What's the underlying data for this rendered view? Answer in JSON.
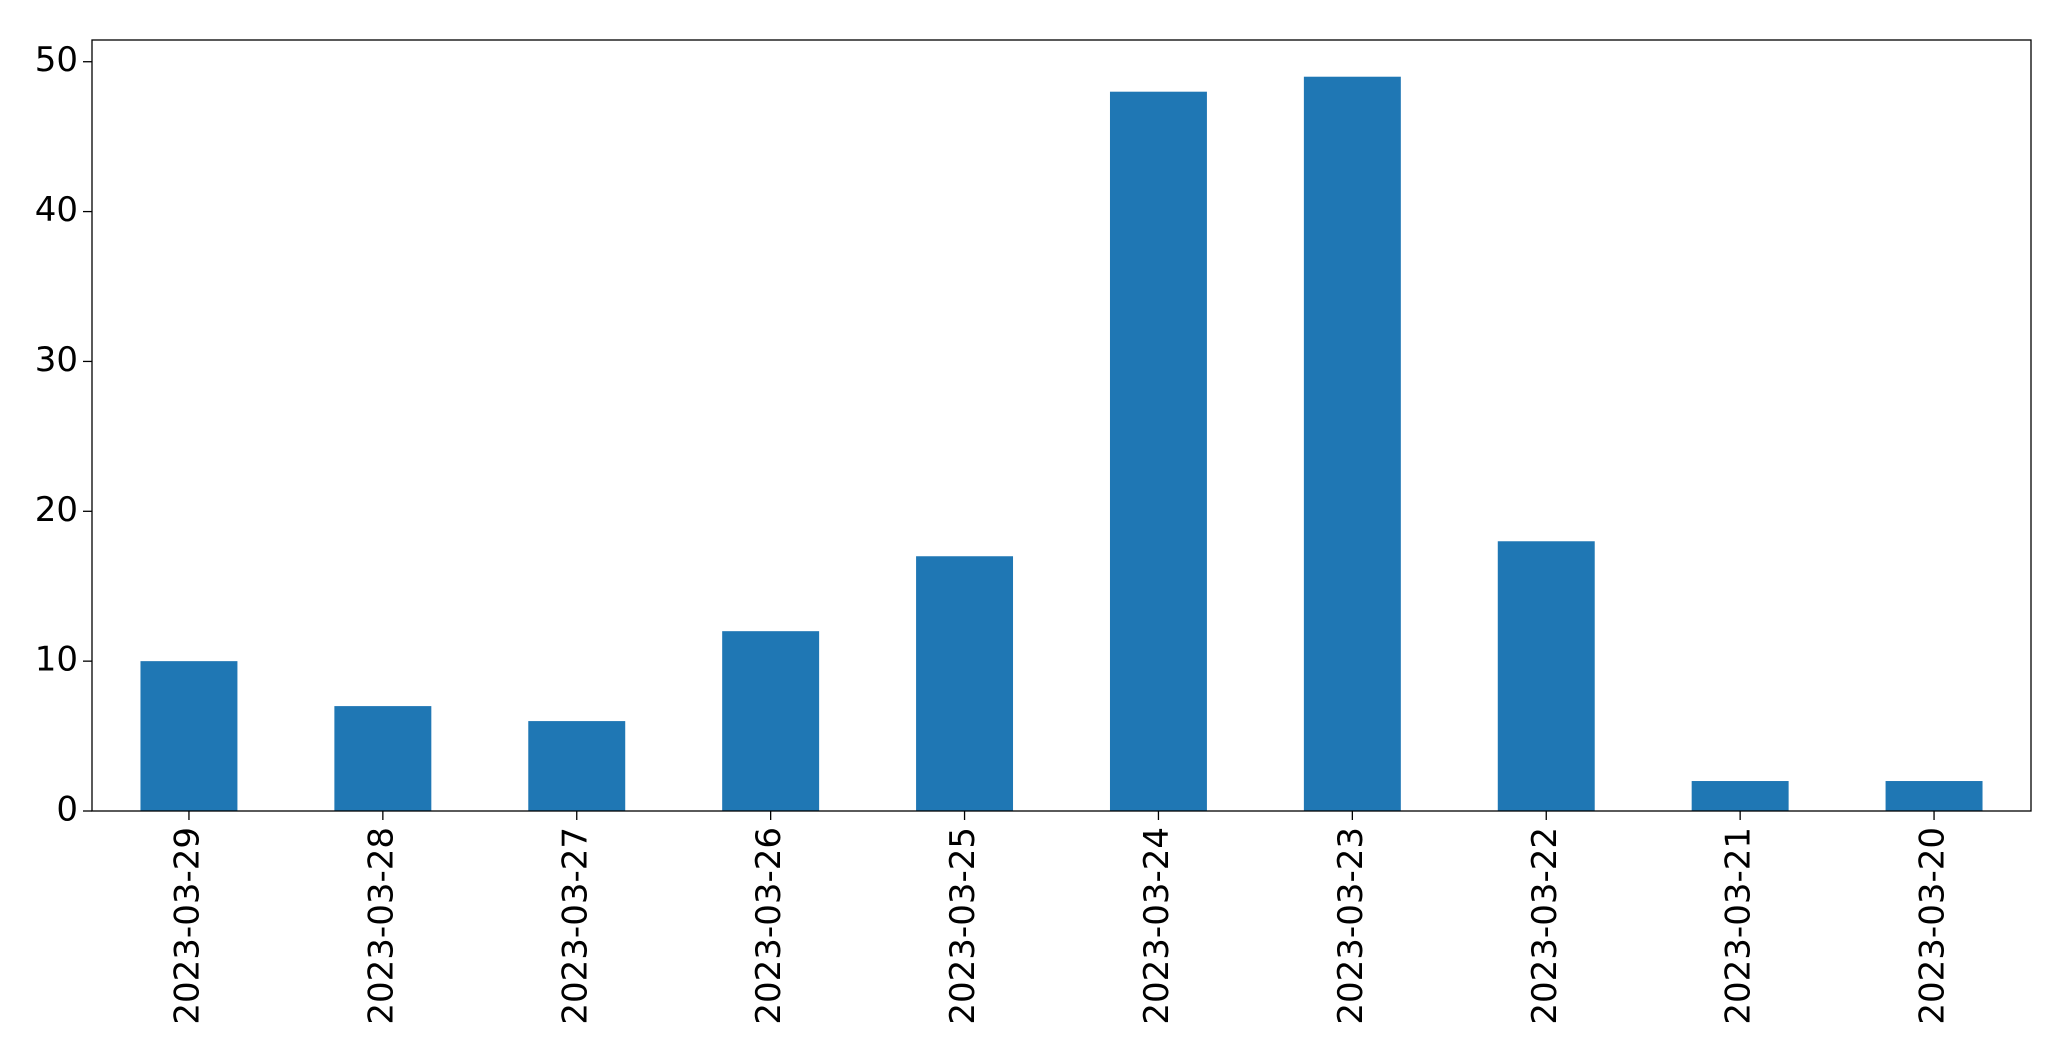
{
  "chart_data": {
    "type": "bar",
    "categories": [
      "2023-03-29",
      "2023-03-28",
      "2023-03-27",
      "2023-03-26",
      "2023-03-25",
      "2023-03-24",
      "2023-03-23",
      "2023-03-22",
      "2023-03-21",
      "2023-03-20"
    ],
    "values": [
      10,
      7,
      6,
      12,
      17,
      48,
      49,
      18,
      2,
      2
    ],
    "color": "#1f77b4",
    "ylim": [
      0,
      51.45
    ],
    "yticks": [
      0,
      10,
      20,
      30,
      40,
      50
    ],
    "grid": false
  }
}
